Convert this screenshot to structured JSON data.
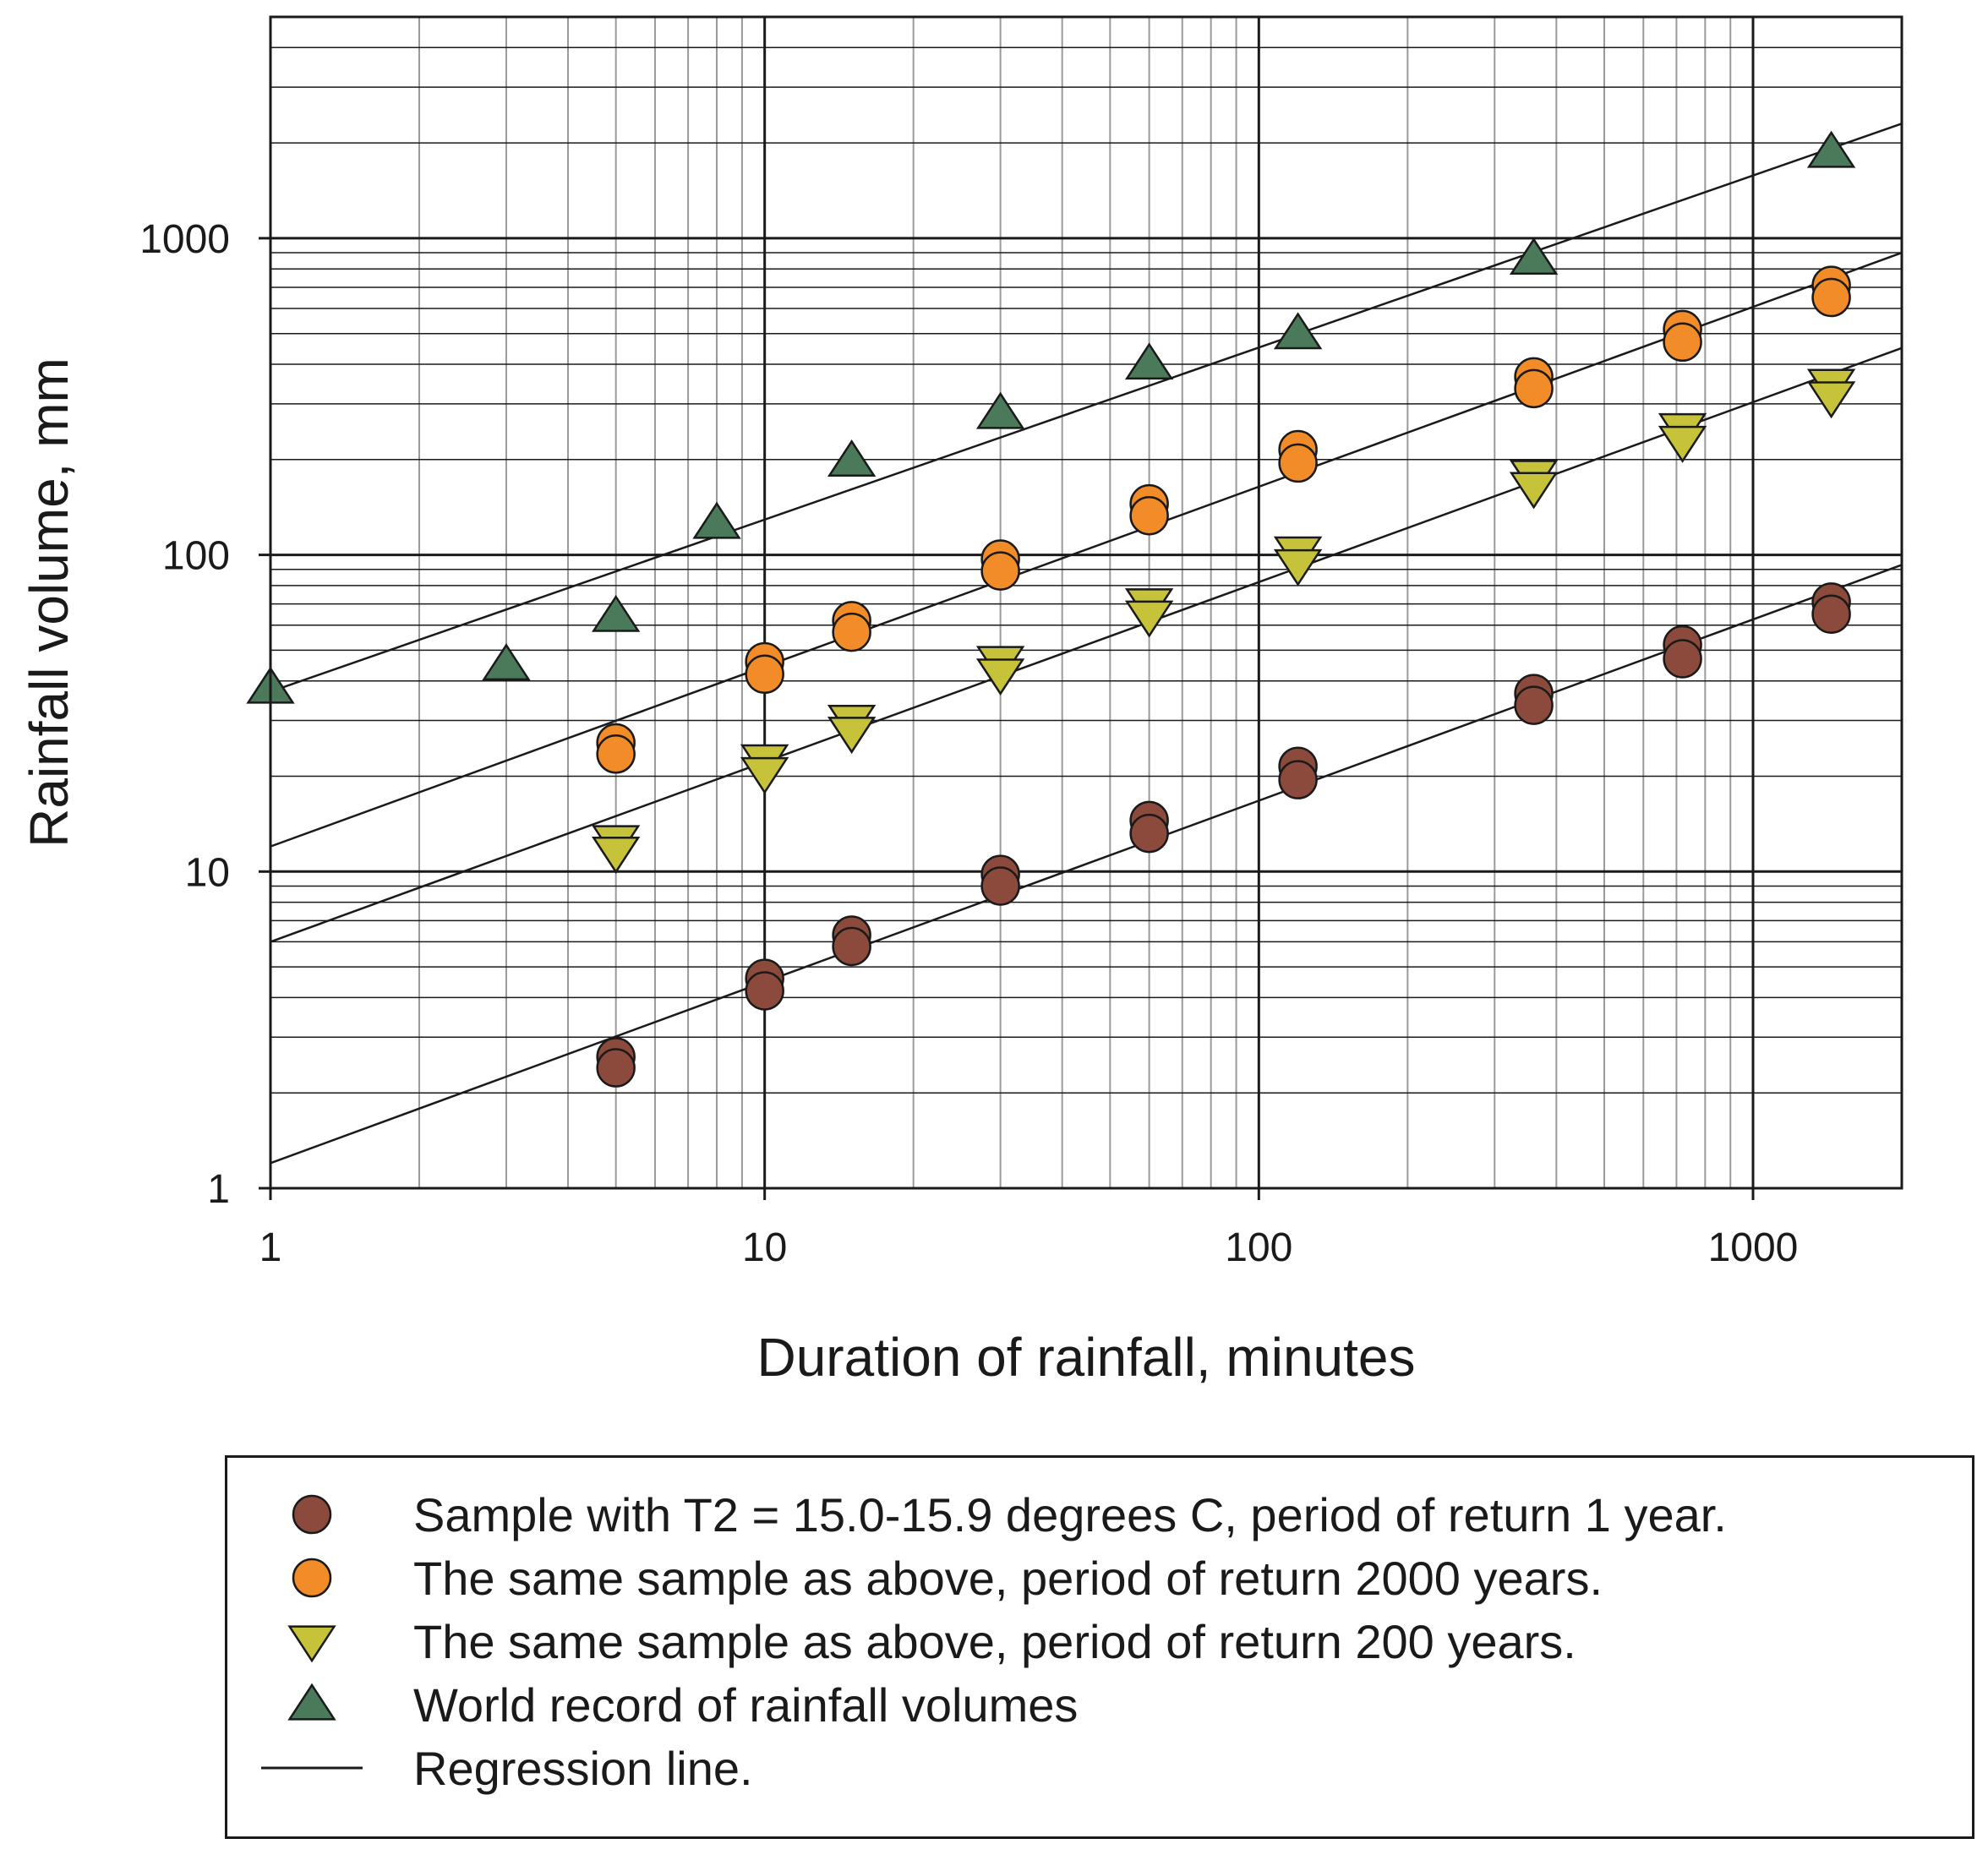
{
  "chart_data": {
    "type": "scatter",
    "title": "",
    "xlabel": "Duration of rainfall, minutes",
    "ylabel": "Rainfall volume, mm",
    "xscale": "log",
    "yscale": "log",
    "xlim": [
      1,
      2000
    ],
    "ylim": [
      1,
      5000
    ],
    "grid": true,
    "x_ticks": [
      {
        "value": 1,
        "label": "1"
      },
      {
        "value": 10,
        "label": "10"
      },
      {
        "value": 100,
        "label": "100"
      },
      {
        "value": 1000,
        "label": "1000"
      }
    ],
    "y_ticks": [
      {
        "value": 1,
        "label": "1"
      },
      {
        "value": 10,
        "label": "10"
      },
      {
        "value": 100,
        "label": "100"
      },
      {
        "value": 1000,
        "label": "1000"
      }
    ],
    "legend_position": "below",
    "series": [
      {
        "name": "Sample with T2 = 15.0-15.9 degrees C, period of return 1 year.",
        "marker": "circle",
        "color": "#8B4A3C",
        "points": [
          {
            "x": 5,
            "y": 2.6
          },
          {
            "x": 5,
            "y": 2.4
          },
          {
            "x": 10,
            "y": 4.6
          },
          {
            "x": 10,
            "y": 4.2
          },
          {
            "x": 15,
            "y": 6.3
          },
          {
            "x": 15,
            "y": 5.8
          },
          {
            "x": 30,
            "y": 9.8
          },
          {
            "x": 30,
            "y": 9.0
          },
          {
            "x": 60,
            "y": 14.5
          },
          {
            "x": 60,
            "y": 13.2
          },
          {
            "x": 120,
            "y": 21.5
          },
          {
            "x": 120,
            "y": 19.5
          },
          {
            "x": 360,
            "y": 36.5
          },
          {
            "x": 360,
            "y": 33.5
          },
          {
            "x": 720,
            "y": 52
          },
          {
            "x": 720,
            "y": 47
          },
          {
            "x": 1440,
            "y": 71
          },
          {
            "x": 1440,
            "y": 65
          }
        ]
      },
      {
        "name": "The same sample as above, period of return 2000 years.",
        "marker": "circle",
        "color": "#F28C28",
        "points": [
          {
            "x": 5,
            "y": 25.5
          },
          {
            "x": 5,
            "y": 23.5
          },
          {
            "x": 10,
            "y": 46
          },
          {
            "x": 10,
            "y": 42
          },
          {
            "x": 15,
            "y": 62
          },
          {
            "x": 15,
            "y": 57
          },
          {
            "x": 30,
            "y": 97
          },
          {
            "x": 30,
            "y": 89
          },
          {
            "x": 60,
            "y": 145
          },
          {
            "x": 60,
            "y": 133
          },
          {
            "x": 120,
            "y": 215
          },
          {
            "x": 120,
            "y": 195
          },
          {
            "x": 360,
            "y": 365
          },
          {
            "x": 360,
            "y": 335
          },
          {
            "x": 720,
            "y": 515
          },
          {
            "x": 720,
            "y": 470
          },
          {
            "x": 1440,
            "y": 710
          },
          {
            "x": 1440,
            "y": 650
          }
        ]
      },
      {
        "name": "The same sample as above, period of return 200 years.",
        "marker": "triangle-down",
        "color": "#C6C23A",
        "points": [
          {
            "x": 5,
            "y": 12.5
          },
          {
            "x": 5,
            "y": 11.5
          },
          {
            "x": 10,
            "y": 22.5
          },
          {
            "x": 10,
            "y": 20.5
          },
          {
            "x": 15,
            "y": 30
          },
          {
            "x": 15,
            "y": 27.5
          },
          {
            "x": 30,
            "y": 46
          },
          {
            "x": 30,
            "y": 42
          },
          {
            "x": 60,
            "y": 70
          },
          {
            "x": 60,
            "y": 64
          },
          {
            "x": 120,
            "y": 102
          },
          {
            "x": 120,
            "y": 93
          },
          {
            "x": 360,
            "y": 178
          },
          {
            "x": 360,
            "y": 163
          },
          {
            "x": 720,
            "y": 250
          },
          {
            "x": 720,
            "y": 228
          },
          {
            "x": 1440,
            "y": 345
          },
          {
            "x": 1440,
            "y": 315
          }
        ]
      },
      {
        "name": "World record of rainfall volumes",
        "marker": "triangle-up",
        "color": "#4A7A5A",
        "points": [
          {
            "x": 1,
            "y": 38
          },
          {
            "x": 3,
            "y": 45
          },
          {
            "x": 5,
            "y": 64
          },
          {
            "x": 8,
            "y": 126
          },
          {
            "x": 15,
            "y": 198
          },
          {
            "x": 30,
            "y": 280
          },
          {
            "x": 60,
            "y": 401
          },
          {
            "x": 120,
            "y": 500
          },
          {
            "x": 360,
            "y": 860
          },
          {
            "x": 1440,
            "y": 1870
          }
        ]
      }
    ],
    "regression_lines": {
      "name": "Regression line.",
      "color": "#1a1a1a",
      "lines": [
        {
          "x": [
            1,
            2000
          ],
          "y": [
            1.2,
            93
          ]
        },
        {
          "x": [
            1,
            2000
          ],
          "y": [
            6.0,
            450
          ]
        },
        {
          "x": [
            1,
            2000
          ],
          "y": [
            12.0,
            900
          ]
        },
        {
          "x": [
            1,
            2000
          ],
          "y": [
            37,
            2300
          ]
        }
      ]
    }
  },
  "legend": {
    "items": [
      {
        "label": "Sample with T2 = 15.0-15.9 degrees C, period of return 1 year.",
        "marker": "circle",
        "color": "#8B4A3C"
      },
      {
        "label": "The same sample as above, period of return 2000 years.",
        "marker": "circle",
        "color": "#F28C28"
      },
      {
        "label": "The same sample as above, period of return 200 years.",
        "marker": "triangle-down",
        "color": "#C6C23A"
      },
      {
        "label": "World record of rainfall volumes",
        "marker": "triangle-up",
        "color": "#4A7A5A"
      },
      {
        "label": "Regression line.",
        "marker": "line",
        "color": "#1a1a1a"
      }
    ]
  }
}
